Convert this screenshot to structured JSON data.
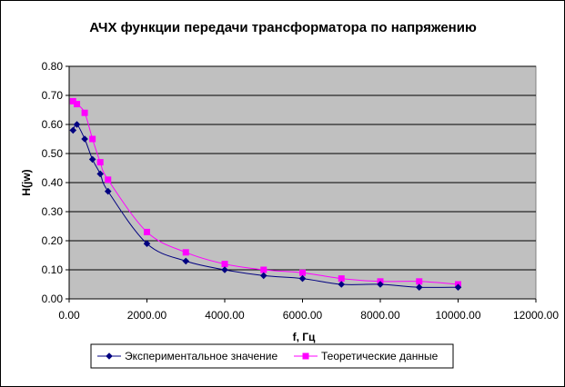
{
  "chart_data": {
    "type": "scatter",
    "title": "АЧХ функции передачи трансформатора по напряжению",
    "xlabel": "f, Гц",
    "ylabel": "H(jw)",
    "xlim": [
      0,
      12000
    ],
    "ylim": [
      0,
      0.8
    ],
    "x_ticks": [
      "0.00",
      "2000.00",
      "4000.00",
      "6000.00",
      "8000.00",
      "10000.00",
      "12000.00"
    ],
    "y_ticks": [
      "0.00",
      "0.10",
      "0.20",
      "0.30",
      "0.40",
      "0.50",
      "0.60",
      "0.70",
      "0.80"
    ],
    "grid": true,
    "plot_background": "#c0c0c0",
    "legend_position": "bottom",
    "series": [
      {
        "name": "Экспериментальное значение",
        "color": "#000080",
        "marker": "diamond",
        "points": [
          [
            100,
            0.58
          ],
          [
            200,
            0.6
          ],
          [
            400,
            0.55
          ],
          [
            600,
            0.48
          ],
          [
            800,
            0.43
          ],
          [
            1000,
            0.37
          ],
          [
            2000,
            0.19
          ],
          [
            3000,
            0.13
          ],
          [
            4000,
            0.1
          ],
          [
            5000,
            0.08
          ],
          [
            6000,
            0.07
          ],
          [
            7000,
            0.05
          ],
          [
            8000,
            0.05
          ],
          [
            9000,
            0.04
          ],
          [
            10000,
            0.04
          ]
        ]
      },
      {
        "name": "Теоретические данные",
        "color": "#ff00ff",
        "marker": "square",
        "points": [
          [
            100,
            0.68
          ],
          [
            200,
            0.67
          ],
          [
            400,
            0.64
          ],
          [
            600,
            0.55
          ],
          [
            800,
            0.47
          ],
          [
            1000,
            0.41
          ],
          [
            2000,
            0.23
          ],
          [
            3000,
            0.16
          ],
          [
            4000,
            0.12
          ],
          [
            5000,
            0.1
          ],
          [
            6000,
            0.09
          ],
          [
            7000,
            0.07
          ],
          [
            8000,
            0.06
          ],
          [
            9000,
            0.06
          ],
          [
            10000,
            0.05
          ]
        ]
      }
    ]
  }
}
